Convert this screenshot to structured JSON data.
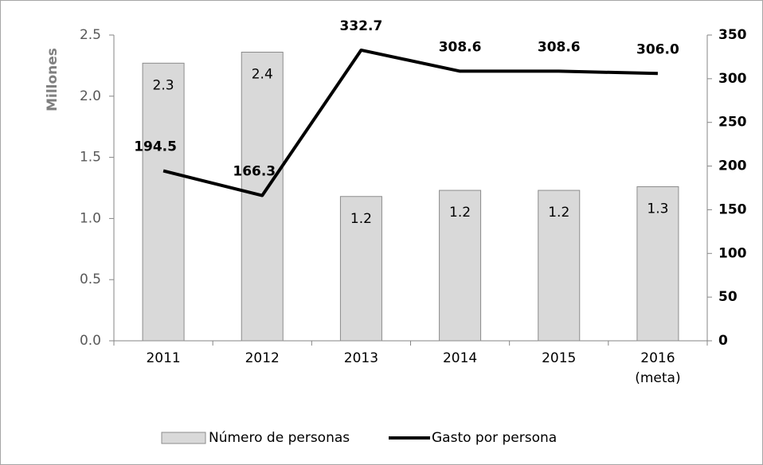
{
  "chart_data": {
    "type": "combo",
    "categories": [
      "2011",
      "2012",
      "2013",
      "2014",
      "2015",
      "2016\n(meta)"
    ],
    "y_label": "Millones",
    "series": [
      {
        "name": "Número de personas",
        "type": "bar",
        "color": "#d9d9d9",
        "axis": "y",
        "values": [
          2.27,
          2.36,
          1.18,
          1.23,
          1.23,
          1.26
        ],
        "value_labels": [
          "2.3",
          "2.4",
          "1.2",
          "1.2",
          "1.2",
          "1.3"
        ]
      },
      {
        "name": "Gasto por persona",
        "type": "line",
        "color": "#000000",
        "axis": "y2",
        "values": [
          194.5,
          166.3,
          332.7,
          308.6,
          308.6,
          306.0
        ],
        "value_labels": [
          "194.5",
          "166.3",
          "332.7",
          "308.6",
          "308.6",
          "306.0"
        ]
      }
    ],
    "ylim": [
      0,
      2.5
    ],
    "yticks": [
      {
        "value": 0,
        "label": "0.0"
      },
      0.5,
      {
        "value": 1,
        "label": "1.0"
      },
      1.5,
      {
        "value": 2,
        "label": "2.0"
      },
      2.5
    ],
    "y2lim": [
      0,
      350
    ],
    "y2ticks": [
      0,
      50,
      100,
      150,
      200,
      250,
      300,
      350
    ],
    "legend": "bottom"
  }
}
